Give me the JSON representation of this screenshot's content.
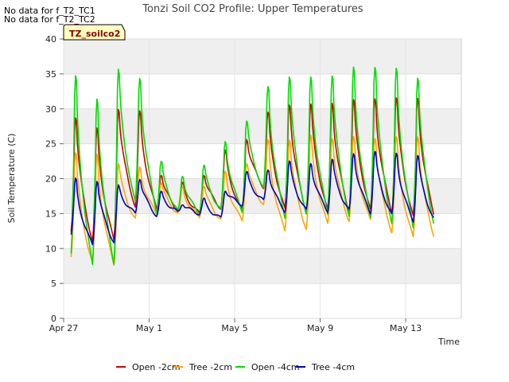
{
  "notes": [
    "No data for f_T2_TC1",
    "No data for f_T2_TC2"
  ],
  "tag_label": "TZ_soilco2",
  "chart_data": {
    "type": "line",
    "title": "Tonzi Soil CO2 Profile: Upper Temperatures",
    "xlabel": "Time",
    "ylabel": "Soil Temperature (C)",
    "ylim": [
      0,
      40
    ],
    "yticks": [
      0,
      5,
      10,
      15,
      20,
      25,
      30,
      35,
      40
    ],
    "xlim": [
      0,
      18.6
    ],
    "xticks": [
      0,
      4,
      8,
      12,
      16
    ],
    "xtick_labels": [
      "Apr 27",
      "May 1",
      "May 5",
      "May 9",
      "May 13"
    ],
    "grid": true,
    "legend_position": "bottom",
    "series": [
      {
        "name": "Open -2cm",
        "color": "#d00000",
        "daily": [
          [
            29.2,
            12.5
          ],
          [
            27.3,
            11.0
          ],
          [
            30.5,
            11.2
          ],
          [
            29.7,
            16.0
          ],
          [
            20.8,
            15.6
          ],
          [
            19.3,
            15.4
          ],
          [
            20.8,
            15.0
          ],
          [
            24.0,
            15.8
          ],
          [
            26.0,
            15.4
          ],
          [
            29.5,
            18.8
          ],
          [
            31.0,
            15.6
          ],
          [
            30.8,
            15.2
          ],
          [
            31.2,
            15.4
          ],
          [
            31.5,
            15.2
          ],
          [
            31.8,
            15.4
          ],
          [
            31.8,
            15.2
          ],
          [
            31.8,
            14.5
          ]
        ]
      },
      {
        "name": "Tree -2cm",
        "color": "#ffa500",
        "daily": [
          [
            24.0,
            9.0
          ],
          [
            23.7,
            7.8
          ],
          [
            22.5,
            7.8
          ],
          [
            21.7,
            14.2
          ],
          [
            19.6,
            15.0
          ],
          [
            18.7,
            15.0
          ],
          [
            19.1,
            14.5
          ],
          [
            21.0,
            14.2
          ],
          [
            22.5,
            14.0
          ],
          [
            25.5,
            16.3
          ],
          [
            26.0,
            12.5
          ],
          [
            26.2,
            12.8
          ],
          [
            26.2,
            13.5
          ],
          [
            26.0,
            14.0
          ],
          [
            26.2,
            14.0
          ],
          [
            26.0,
            12.4
          ],
          [
            26.5,
            11.5
          ]
        ]
      },
      {
        "name": "Open -4cm",
        "color": "#00dd00",
        "daily": [
          [
            35.0,
            9.5
          ],
          [
            32.0,
            7.5
          ],
          [
            36.0,
            8.0
          ],
          [
            34.8,
            16.5
          ],
          [
            22.5,
            15.3
          ],
          [
            20.5,
            15.3
          ],
          [
            22.0,
            15.0
          ],
          [
            25.5,
            15.5
          ],
          [
            28.5,
            15.4
          ],
          [
            33.4,
            18.5
          ],
          [
            35.0,
            14.5
          ],
          [
            34.8,
            14.8
          ],
          [
            35.2,
            15.0
          ],
          [
            36.2,
            14.5
          ],
          [
            36.5,
            14.5
          ],
          [
            36.0,
            13.5
          ],
          [
            35.0,
            13.0
          ]
        ]
      },
      {
        "name": "Tree -4cm",
        "color": "#0000cc",
        "daily": [
          [
            20.0,
            12.0
          ],
          [
            20.0,
            10.5
          ],
          [
            19.0,
            10.9
          ],
          [
            20.2,
            15.0
          ],
          [
            18.0,
            14.7
          ],
          [
            16.5,
            15.2
          ],
          [
            17.0,
            15.0
          ],
          [
            18.5,
            14.3
          ],
          [
            20.9,
            16.3
          ],
          [
            21.5,
            16.8
          ],
          [
            22.5,
            15.4
          ],
          [
            22.4,
            15.4
          ],
          [
            22.8,
            15.4
          ],
          [
            23.8,
            15.4
          ],
          [
            24.0,
            15.2
          ],
          [
            23.8,
            14.8
          ],
          [
            23.5,
            14.0
          ]
        ]
      }
    ]
  },
  "legend": [
    {
      "label": "Open -2cm",
      "color": "#d00000"
    },
    {
      "label": "Tree -2cm",
      "color": "#ffa500"
    },
    {
      "label": "Open -4cm",
      "color": "#00dd00"
    },
    {
      "label": "Tree -4cm",
      "color": "#0000cc"
    }
  ]
}
